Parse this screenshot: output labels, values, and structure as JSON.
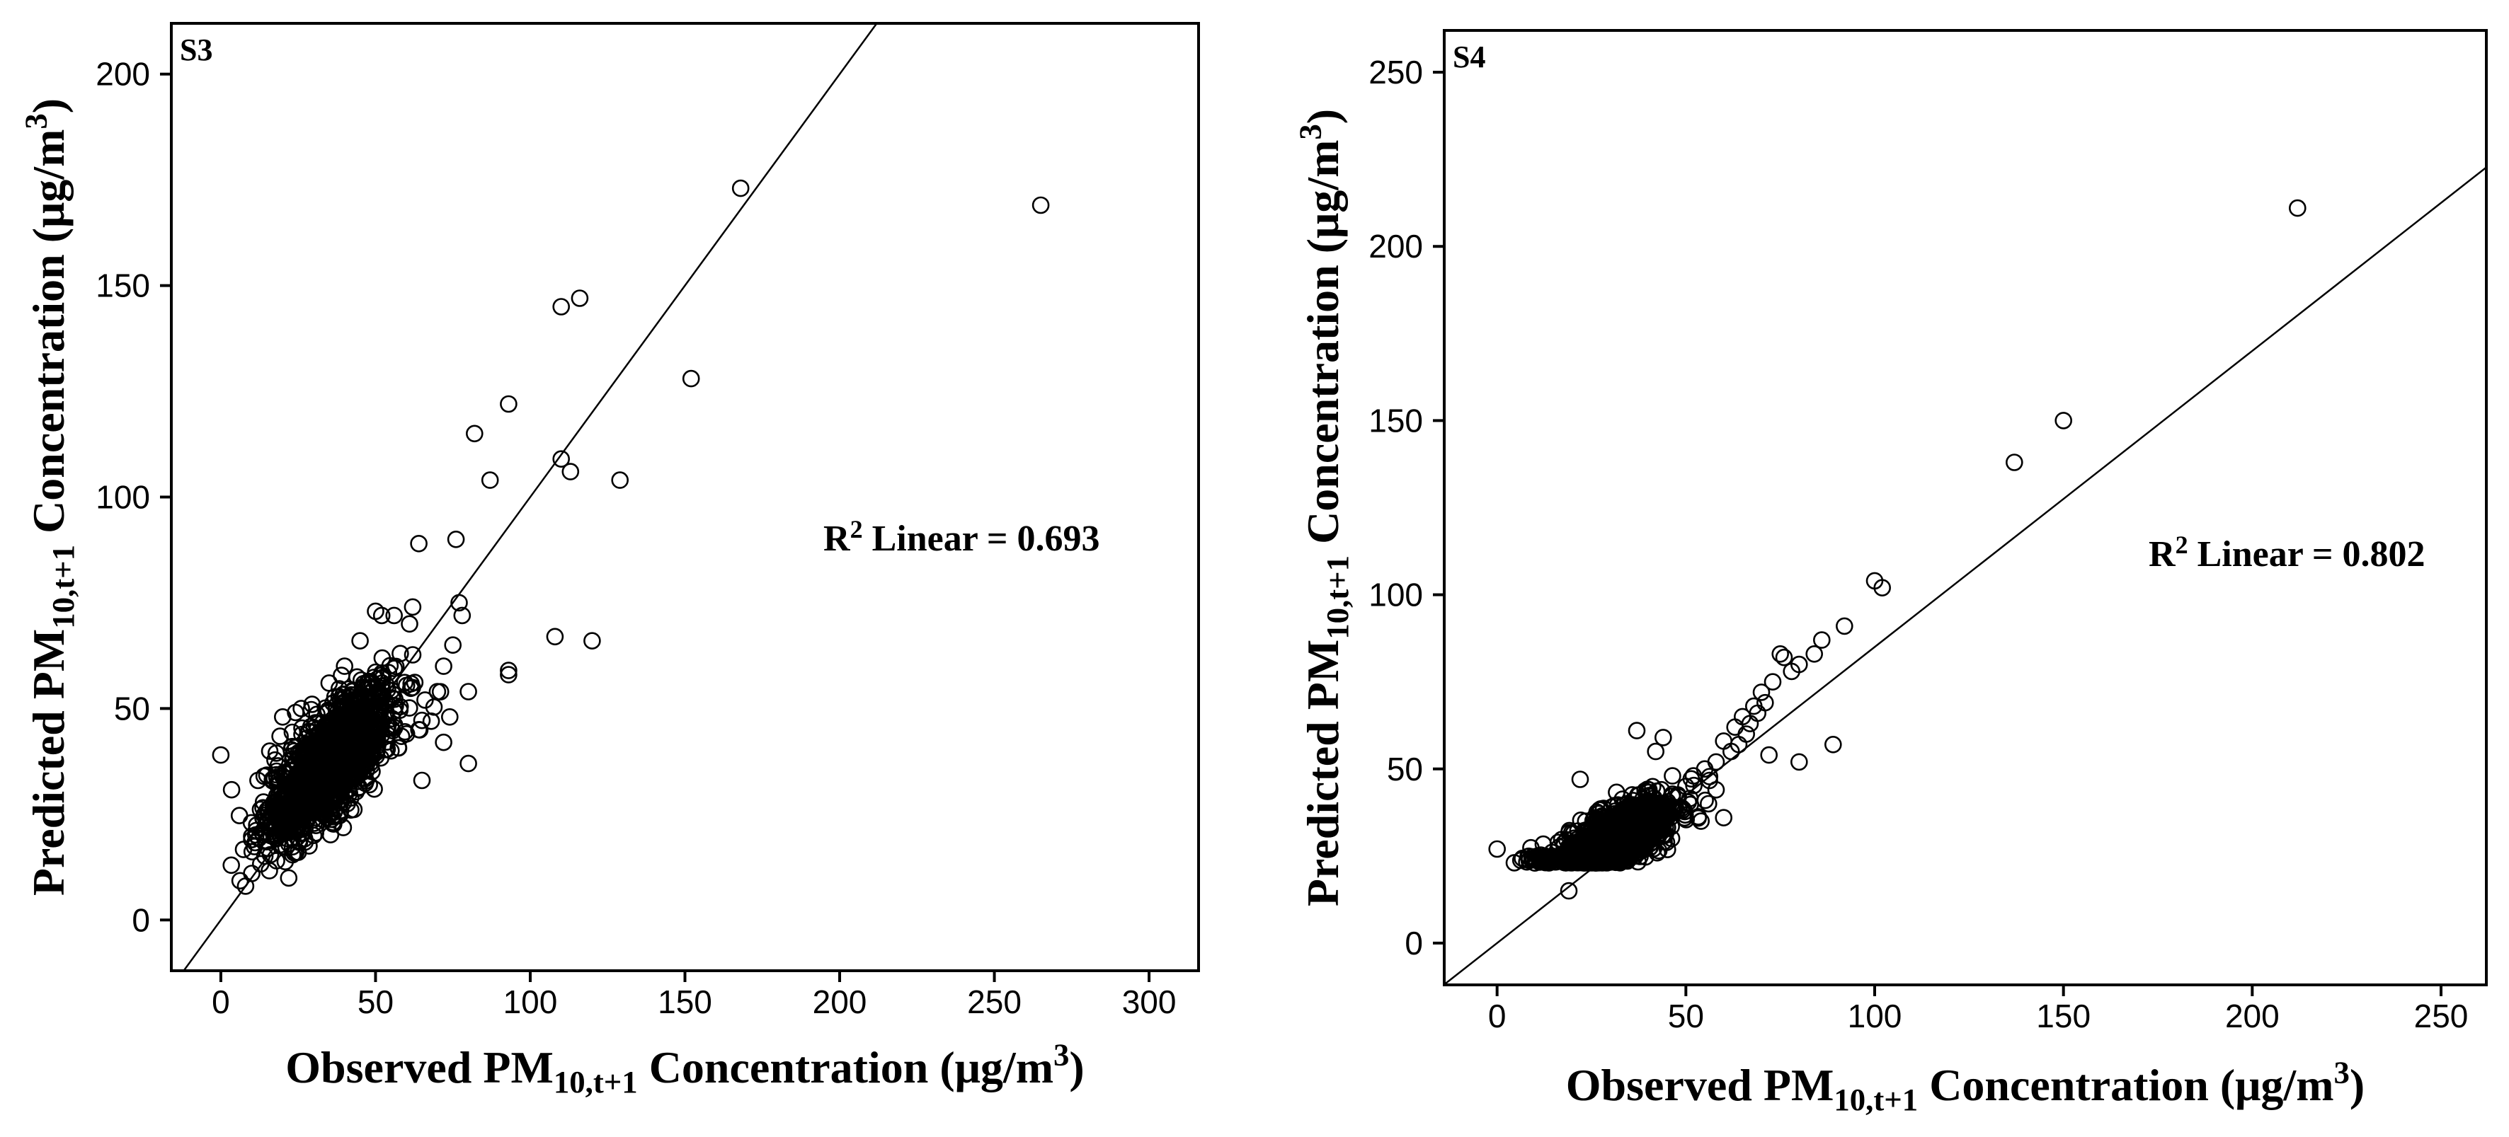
{
  "figure": {
    "panels": [
      "S3",
      "S4"
    ]
  },
  "chart_data": [
    {
      "type": "scatter",
      "panel_label": "S3",
      "xlabel": {
        "pre": "Observed PM",
        "sub": "10,t+1",
        "post": " Concentration (μg/m",
        "sup": "3",
        "end": ")"
      },
      "ylabel": {
        "pre": "Predicted PM",
        "sub": "10,t+1",
        "post": " Concentration (μg/m",
        "sup": "3",
        "end": ")"
      },
      "xlim": [
        -16,
        316
      ],
      "ylim": [
        -12,
        212
      ],
      "xticks": [
        0,
        50,
        100,
        150,
        200,
        250,
        300
      ],
      "yticks": [
        0,
        50,
        100,
        150,
        200
      ],
      "annotation": {
        "pre": "R",
        "sup": "2",
        "post": " Linear = 0.693"
      },
      "fit_line": {
        "intercept": 0,
        "slope": 1
      },
      "point_cloud": {
        "center_x": 35,
        "center_y": 37,
        "count": 1400,
        "slope": 0.7,
        "spread_x": 10,
        "spread_y": 6
      },
      "points": [
        [
          0,
          39
        ],
        [
          8,
          8
        ],
        [
          10,
          11
        ],
        [
          10,
          19
        ],
        [
          12,
          33
        ],
        [
          14,
          34
        ],
        [
          20,
          48
        ],
        [
          26,
          50
        ],
        [
          64,
          89
        ],
        [
          76,
          90
        ],
        [
          77,
          75
        ],
        [
          78,
          72
        ],
        [
          82,
          115
        ],
        [
          87,
          104
        ],
        [
          93,
          122
        ],
        [
          93,
          59
        ],
        [
          93,
          58
        ],
        [
          80,
          37
        ],
        [
          65,
          33
        ],
        [
          56,
          72
        ],
        [
          50,
          73
        ],
        [
          52,
          72
        ],
        [
          62,
          74
        ],
        [
          61,
          70
        ],
        [
          108,
          67
        ],
        [
          110,
          145
        ],
        [
          116,
          147
        ],
        [
          110,
          109
        ],
        [
          113,
          106
        ],
        [
          120,
          66
        ],
        [
          129,
          104
        ],
        [
          152,
          128
        ],
        [
          168,
          173
        ],
        [
          265,
          169
        ],
        [
          70,
          54
        ],
        [
          72,
          60
        ],
        [
          75,
          65
        ],
        [
          68,
          47
        ],
        [
          74,
          48
        ],
        [
          58,
          63
        ],
        [
          45,
          66
        ],
        [
          40,
          60
        ],
        [
          25,
          16
        ],
        [
          18,
          14
        ],
        [
          22,
          18
        ],
        [
          30,
          20
        ],
        [
          15,
          26
        ],
        [
          42,
          26
        ],
        [
          48,
          32
        ],
        [
          55,
          40
        ],
        [
          60,
          44
        ],
        [
          64,
          45
        ],
        [
          66,
          52
        ],
        [
          80,
          54
        ],
        [
          72,
          42
        ]
      ]
    },
    {
      "type": "scatter",
      "panel_label": "S4",
      "xlabel": {
        "pre": "Observed PM",
        "sub": "10,t+1",
        "post": " Concentration (μg/m",
        "sup": "3",
        "end": ")"
      },
      "ylabel": {
        "pre": "Predicted PM",
        "sub": "10,t+1",
        "post": " Concentration (μg/m",
        "sup": "3",
        "end": ")"
      },
      "xlim": [
        -14,
        262
      ],
      "ylim": [
        -12,
        262
      ],
      "xticks": [
        0,
        50,
        100,
        150,
        200,
        250
      ],
      "yticks": [
        0,
        50,
        100,
        150,
        200,
        250
      ],
      "annotation": {
        "pre": "R",
        "sup": "2",
        "post": " Linear = 0.802"
      },
      "fit_line": {
        "intercept": 0,
        "slope": 0.85
      },
      "point_cloud": {
        "center_x": 30,
        "center_y": 29,
        "count": 1400,
        "slope": 0.55,
        "spread_x": 8,
        "spread_y": 4,
        "floor_y": 23
      },
      "points": [
        [
          0,
          27
        ],
        [
          10,
          23
        ],
        [
          19,
          15
        ],
        [
          22,
          47
        ],
        [
          37,
          61
        ],
        [
          44,
          59
        ],
        [
          42,
          55
        ],
        [
          60,
          58
        ],
        [
          63,
          62
        ],
        [
          70,
          72
        ],
        [
          73,
          75
        ],
        [
          75,
          83
        ],
        [
          76,
          82
        ],
        [
          80,
          80
        ],
        [
          84,
          83
        ],
        [
          86,
          87
        ],
        [
          89,
          57
        ],
        [
          80,
          52
        ],
        [
          72,
          54
        ],
        [
          92,
          91
        ],
        [
          100,
          104
        ],
        [
          102,
          102
        ],
        [
          137,
          138
        ],
        [
          150,
          150
        ],
        [
          212,
          211
        ],
        [
          55,
          50
        ],
        [
          58,
          52
        ],
        [
          62,
          55
        ],
        [
          65,
          65
        ],
        [
          68,
          68
        ],
        [
          50,
          45
        ],
        [
          52,
          48
        ],
        [
          48,
          42
        ],
        [
          45,
          40
        ],
        [
          40,
          36
        ],
        [
          38,
          33
        ],
        [
          66,
          60
        ],
        [
          64,
          57
        ],
        [
          67,
          63
        ],
        [
          71,
          69
        ],
        [
          69,
          66
        ],
        [
          78,
          78
        ],
        [
          58,
          44
        ],
        [
          56,
          40
        ],
        [
          60,
          36
        ],
        [
          54,
          35
        ]
      ]
    }
  ]
}
